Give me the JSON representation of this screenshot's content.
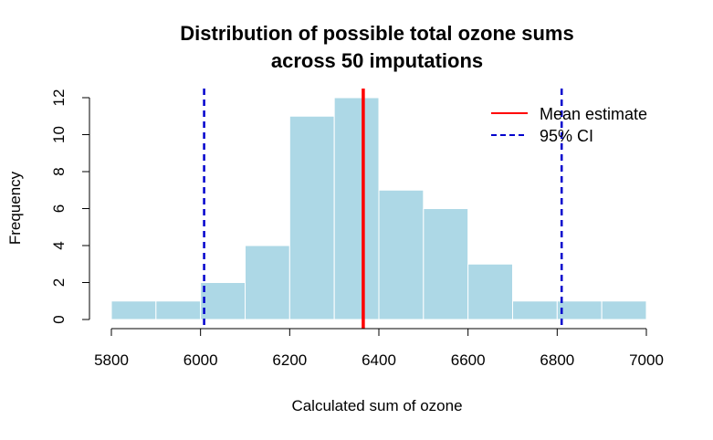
{
  "chart_data": {
    "type": "bar",
    "title_line1": "Distribution of possible total ozone sums",
    "title_line2": "across 50 imputations",
    "xlabel": "Calculated sum of ozone",
    "ylabel": "Frequency",
    "xlim": [
      5800,
      7000
    ],
    "ylim": [
      0,
      12
    ],
    "x_ticks": [
      "5800",
      "6000",
      "6200",
      "6400",
      "6600",
      "6800",
      "7000"
    ],
    "y_ticks": [
      "0",
      "2",
      "4",
      "6",
      "8",
      "10",
      "12"
    ],
    "bin_edges": [
      5800,
      5900,
      6000,
      6100,
      6200,
      6300,
      6400,
      6500,
      6600,
      6700,
      6800,
      6900,
      7000
    ],
    "values": [
      1,
      1,
      2,
      4,
      11,
      12,
      7,
      6,
      3,
      1,
      1,
      1
    ],
    "bar_color": "#ADD8E6",
    "bar_border_color": "#ffffff",
    "mean_estimate": 6365,
    "ci_lower": 6008,
    "ci_upper": 6810,
    "mean_color": "#FF0000",
    "ci_color": "#0000CD",
    "grid": false,
    "legend_position": "top-right",
    "legend": [
      {
        "label": "Mean estimate",
        "color": "#FF0000",
        "style": "solid"
      },
      {
        "label": "95% CI",
        "color": "#0000CD",
        "style": "dashed"
      }
    ]
  }
}
